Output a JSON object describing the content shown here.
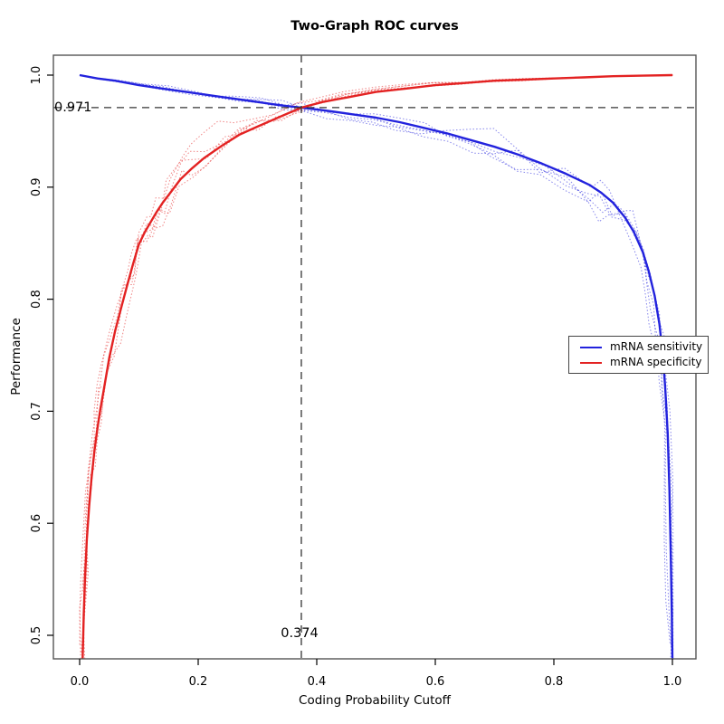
{
  "page": {
    "background": "#ffffff"
  },
  "chart_data": {
    "type": "line",
    "title": "Two-Graph ROC curves",
    "xlabel": "Coding Probability Cutoff",
    "ylabel": "Performance",
    "xlim": [
      0.0,
      1.0
    ],
    "ylim": [
      0.5,
      1.0
    ],
    "grid": false,
    "x_tick_values": [
      0.0,
      0.2,
      0.4,
      0.6,
      0.8,
      1.0
    ],
    "x_tick_labels": [
      "0.0",
      "0.2",
      "0.4",
      "0.6",
      "0.8",
      "1.0"
    ],
    "y_tick_values": [
      0.5,
      0.6,
      0.7,
      0.8,
      0.9,
      1.0
    ],
    "y_tick_labels": [
      "0.5",
      "0.6",
      "0.7",
      "0.8",
      "0.9",
      "1.0"
    ],
    "colors": {
      "sensitivity": "#2222dd",
      "specificity": "#e32222",
      "crosshair": "#333333",
      "axis": "#000000",
      "box": "#555555"
    },
    "legend": {
      "position": "right-middle",
      "entries": [
        {
          "label": "mRNA sensitivity",
          "color": "#2222dd"
        },
        {
          "label": "mRNA specificity",
          "color": "#e32222"
        }
      ]
    },
    "annotations": {
      "cutoff_x": 0.374,
      "cutoff_x_label": "0.374",
      "performance_y": 0.971,
      "performance_y_label": "0.971"
    },
    "series": [
      {
        "name": "mRNA sensitivity",
        "color": "#2222dd",
        "style": "solid",
        "points": [
          [
            0.0,
            1.0
          ],
          [
            0.03,
            0.997
          ],
          [
            0.06,
            0.995
          ],
          [
            0.1,
            0.991
          ],
          [
            0.14,
            0.988
          ],
          [
            0.18,
            0.985
          ],
          [
            0.22,
            0.982
          ],
          [
            0.26,
            0.979
          ],
          [
            0.3,
            0.976
          ],
          [
            0.34,
            0.973
          ],
          [
            0.374,
            0.971
          ],
          [
            0.42,
            0.968
          ],
          [
            0.46,
            0.965
          ],
          [
            0.5,
            0.962
          ],
          [
            0.54,
            0.958
          ],
          [
            0.58,
            0.953
          ],
          [
            0.62,
            0.948
          ],
          [
            0.66,
            0.942
          ],
          [
            0.7,
            0.936
          ],
          [
            0.74,
            0.929
          ],
          [
            0.78,
            0.921
          ],
          [
            0.82,
            0.912
          ],
          [
            0.86,
            0.902
          ],
          [
            0.88,
            0.895
          ],
          [
            0.9,
            0.886
          ],
          [
            0.92,
            0.873
          ],
          [
            0.935,
            0.86
          ],
          [
            0.95,
            0.842
          ],
          [
            0.96,
            0.825
          ],
          [
            0.97,
            0.803
          ],
          [
            0.978,
            0.778
          ],
          [
            0.984,
            0.75
          ],
          [
            0.988,
            0.72
          ],
          [
            0.992,
            0.68
          ],
          [
            0.995,
            0.63
          ],
          [
            0.997,
            0.58
          ],
          [
            0.999,
            0.52
          ],
          [
            1.0,
            0.479
          ]
        ]
      },
      {
        "name": "mRNA specificity",
        "color": "#e32222",
        "style": "solid",
        "points": [
          [
            0.005,
            0.479
          ],
          [
            0.007,
            0.52
          ],
          [
            0.009,
            0.55
          ],
          [
            0.012,
            0.585
          ],
          [
            0.016,
            0.615
          ],
          [
            0.02,
            0.64
          ],
          [
            0.025,
            0.665
          ],
          [
            0.03,
            0.685
          ],
          [
            0.035,
            0.702
          ],
          [
            0.04,
            0.717
          ],
          [
            0.05,
            0.748
          ],
          [
            0.06,
            0.772
          ],
          [
            0.07,
            0.792
          ],
          [
            0.08,
            0.812
          ],
          [
            0.09,
            0.831
          ],
          [
            0.1,
            0.849
          ],
          [
            0.11,
            0.86
          ],
          [
            0.12,
            0.869
          ],
          [
            0.13,
            0.878
          ],
          [
            0.14,
            0.886
          ],
          [
            0.15,
            0.893
          ],
          [
            0.17,
            0.907
          ],
          [
            0.19,
            0.917
          ],
          [
            0.21,
            0.926
          ],
          [
            0.24,
            0.937
          ],
          [
            0.27,
            0.947
          ],
          [
            0.3,
            0.954
          ],
          [
            0.33,
            0.961
          ],
          [
            0.374,
            0.971
          ],
          [
            0.41,
            0.976
          ],
          [
            0.45,
            0.98
          ],
          [
            0.5,
            0.985
          ],
          [
            0.55,
            0.988
          ],
          [
            0.6,
            0.991
          ],
          [
            0.65,
            0.993
          ],
          [
            0.7,
            0.995
          ],
          [
            0.75,
            0.996
          ],
          [
            0.8,
            0.997
          ],
          [
            0.85,
            0.998
          ],
          [
            0.9,
            0.999
          ],
          [
            0.95,
            0.9995
          ],
          [
            1.0,
            1.0
          ]
        ]
      }
    ],
    "replicates": {
      "count_per_series": 5,
      "style": "dotted",
      "opacity": 0.55,
      "seeds": [
        3,
        7,
        11,
        19,
        23
      ]
    }
  }
}
